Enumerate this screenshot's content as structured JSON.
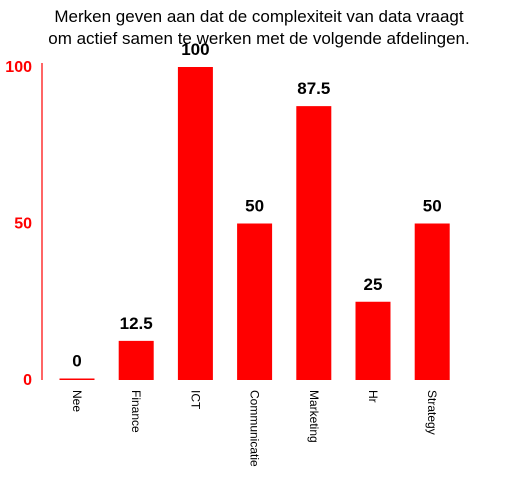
{
  "chart_data": {
    "type": "bar",
    "title_lines": [
      "Merken geven aan dat de complexiteit van data vraagt",
      "om actief samen te werken met de volgende afdelingen."
    ],
    "categories": [
      "Nee",
      "Finance",
      "ICT",
      "Communicatie",
      "Marketing",
      "Hr",
      "Strategy"
    ],
    "values": [
      0,
      12.5,
      100,
      50,
      87.5,
      25,
      50
    ],
    "data_labels": [
      "0",
      "12.5",
      "100",
      "50",
      "87.5",
      "25",
      "50"
    ],
    "ylim": [
      0,
      100
    ],
    "yticks": [
      0,
      50,
      100
    ],
    "xlabel": "",
    "ylabel": "",
    "grid": false,
    "colors": {
      "bar": "#ff0000",
      "axis": "#ff0000",
      "tick_label": "#ff0000",
      "text": "#000000"
    }
  }
}
